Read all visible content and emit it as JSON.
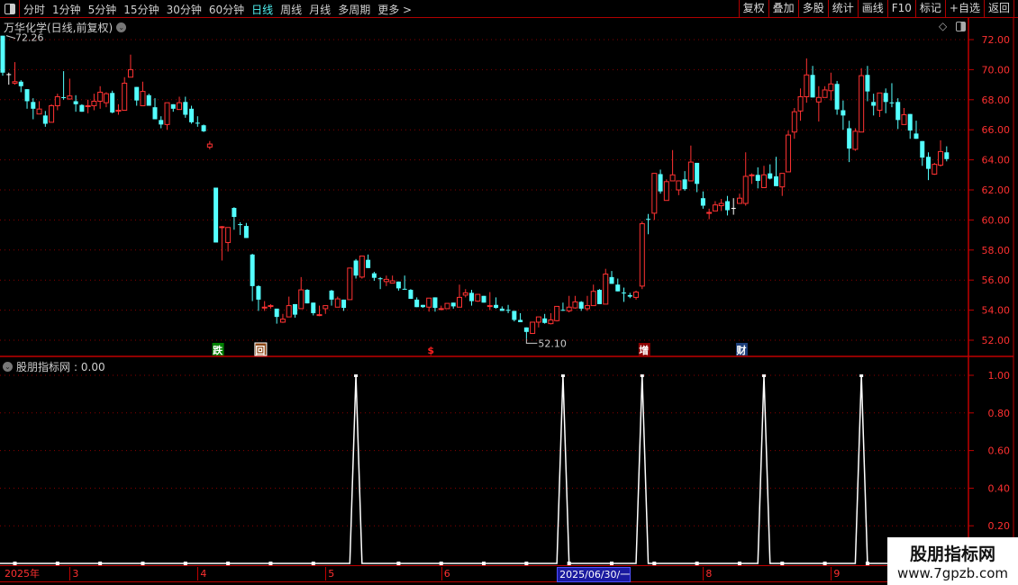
{
  "toolbar": {
    "periods": [
      "分时",
      "1分钟",
      "5分钟",
      "15分钟",
      "30分钟",
      "60分钟",
      "日线",
      "周线",
      "月线",
      "多周期",
      "更多 >"
    ],
    "active_period": "日线",
    "tools": [
      "复权",
      "叠加",
      "多股",
      "统计",
      "画线",
      "F10",
      "标记",
      "+自选",
      "返回"
    ]
  },
  "chart": {
    "title": "万华化学(日线,前复权)",
    "high_label": "72.26",
    "low_label": "52.10",
    "y_ticks": [
      "72.00",
      "70.00",
      "68.00",
      "66.00",
      "64.00",
      "62.00",
      "60.00",
      "58.00",
      "56.00",
      "54.00",
      "52.00"
    ],
    "y_range": [
      52,
      72
    ],
    "colors": {
      "up": "#ff3232",
      "down": "#54ffff",
      "flat": "#ffffff",
      "grid": "#8a0000",
      "axis": "#c00000"
    },
    "events": [
      {
        "label": "跌",
        "index": 35,
        "bg": "#008000",
        "fg": "#ffffff"
      },
      {
        "label": "回",
        "index": 42,
        "bg": "#8b4513",
        "fg": "#ffffff",
        "boxed": true
      },
      {
        "label": "$",
        "index": 70,
        "bg": "none",
        "fg": "#ff2020"
      },
      {
        "label": "增",
        "index": 105,
        "bg": "#8b0000",
        "fg": "#ffffff"
      },
      {
        "label": "财",
        "index": 121,
        "bg": "#1c3d78",
        "fg": "#ffffff"
      }
    ],
    "ohlc": [
      [
        72.26,
        72.26,
        69.6,
        69.8
      ],
      [
        69.7,
        69.8,
        69.0,
        69.7
      ],
      [
        69.1,
        70.5,
        69.0,
        69.2
      ],
      [
        69.2,
        69.3,
        68.5,
        68.9
      ],
      [
        68.7,
        68.7,
        67.4,
        67.9
      ],
      [
        67.85,
        68.1,
        66.7,
        67.4
      ],
      [
        67.05,
        67.9,
        67.05,
        67.38
      ],
      [
        66.95,
        67.25,
        66.2,
        66.4
      ],
      [
        66.5,
        67.7,
        66.5,
        67.6
      ],
      [
        67.6,
        68.4,
        67.3,
        68.2
      ],
      [
        68.17,
        69.9,
        68.0,
        68.15
      ],
      [
        68.05,
        69.4,
        68.0,
        68.25
      ],
      [
        67.9,
        68.3,
        67.2,
        67.7
      ],
      [
        67.65,
        67.7,
        67.2,
        67.2
      ],
      [
        67.58,
        68.0,
        67.1,
        67.6
      ],
      [
        67.6,
        68.4,
        67.3,
        67.9
      ],
      [
        67.9,
        68.9,
        67.4,
        68.5
      ],
      [
        67.8,
        68.5,
        67.5,
        68.4
      ],
      [
        68.45,
        68.6,
        67.1,
        67.15
      ],
      [
        67.28,
        67.7,
        67.0,
        67.3
      ],
      [
        67.3,
        69.5,
        67.3,
        69.1
      ],
      [
        69.5,
        71.0,
        69.5,
        70.0
      ],
      [
        68.85,
        68.85,
        67.6,
        67.95
      ],
      [
        67.6,
        69.2,
        67.6,
        68.55
      ],
      [
        68.3,
        68.4,
        67.6,
        67.6
      ],
      [
        67.5,
        68.1,
        66.7,
        66.7
      ],
      [
        66.65,
        66.9,
        66.1,
        66.35
      ],
      [
        66.35,
        67.8,
        66.0,
        67.8
      ],
      [
        67.7,
        67.7,
        67.2,
        67.4
      ],
      [
        67.35,
        68.2,
        67.35,
        67.8
      ],
      [
        67.85,
        68.2,
        66.8,
        67.0
      ],
      [
        67.4,
        67.6,
        66.4,
        66.5
      ],
      [
        66.47,
        66.9,
        66.2,
        66.45
      ],
      [
        66.3,
        66.35,
        65.85,
        65.9
      ],
      [
        64.85,
        65.25,
        64.7,
        65.05
      ],
      [
        62.15,
        62.15,
        58.5,
        58.5
      ],
      [
        59.5,
        59.6,
        57.3,
        59.55
      ],
      [
        58.5,
        59.5,
        57.9,
        59.5
      ],
      [
        60.8,
        60.85,
        59.35,
        60.2
      ],
      [
        59.72,
        59.85,
        59.0,
        59.7
      ],
      [
        59.6,
        59.8,
        58.8,
        58.8
      ],
      [
        57.7,
        57.75,
        54.6,
        55.6
      ],
      [
        55.6,
        55.65,
        53.95,
        54.7
      ],
      [
        54.15,
        54.6,
        53.95,
        54.2
      ],
      [
        54.25,
        54.4,
        54.1,
        54.3
      ],
      [
        54.1,
        54.1,
        53.1,
        53.55
      ],
      [
        53.2,
        53.75,
        53.15,
        53.4
      ],
      [
        53.55,
        54.9,
        53.55,
        54.3
      ],
      [
        54.4,
        54.4,
        53.5,
        53.7
      ],
      [
        54.1,
        56.2,
        54.1,
        55.35
      ],
      [
        55.35,
        55.4,
        54.45,
        54.45
      ],
      [
        54.5,
        54.5,
        53.65,
        53.8
      ],
      [
        53.65,
        54.3,
        53.6,
        53.7
      ],
      [
        54.1,
        54.3,
        53.75,
        54.3
      ],
      [
        55.3,
        55.35,
        54.3,
        54.7
      ],
      [
        54.2,
        54.9,
        54.2,
        54.75
      ],
      [
        54.7,
        54.7,
        53.95,
        54.15
      ],
      [
        54.7,
        56.8,
        54.7,
        56.8
      ],
      [
        57.3,
        57.4,
        56.1,
        56.3
      ],
      [
        56.2,
        57.6,
        56.1,
        57.6
      ],
      [
        57.35,
        57.7,
        56.8,
        56.8
      ],
      [
        56.45,
        56.55,
        55.95,
        56.15
      ],
      [
        56.12,
        56.2,
        55.4,
        56.1
      ],
      [
        55.9,
        56.3,
        55.6,
        56.05
      ],
      [
        55.8,
        56.3,
        55.8,
        55.95
      ],
      [
        55.9,
        55.9,
        55.3,
        55.45
      ],
      [
        55.42,
        56.3,
        55.4,
        55.4
      ],
      [
        55.35,
        55.4,
        54.75,
        54.75
      ],
      [
        54.7,
        54.85,
        54.2,
        54.2
      ],
      [
        54.35,
        54.35,
        54.15,
        54.2
      ],
      [
        54.2,
        54.8,
        53.9,
        54.8
      ],
      [
        54.85,
        54.85,
        53.9,
        54.15
      ],
      [
        54.08,
        54.3,
        54.0,
        54.1
      ],
      [
        54.1,
        54.45,
        54.1,
        54.45
      ],
      [
        54.5,
        54.5,
        54.1,
        54.25
      ],
      [
        54.2,
        55.7,
        54.2,
        54.85
      ],
      [
        55.0,
        55.4,
        54.85,
        55.15
      ],
      [
        55.15,
        55.35,
        54.3,
        54.6
      ],
      [
        54.6,
        55.05,
        54.55,
        55.05
      ],
      [
        54.95,
        54.95,
        54.5,
        54.5
      ],
      [
        54.28,
        55.2,
        54.0,
        54.3
      ],
      [
        54.35,
        54.85,
        54.1,
        54.15
      ],
      [
        54.1,
        54.25,
        53.95,
        53.95
      ],
      [
        54.02,
        54.35,
        53.8,
        54.0
      ],
      [
        53.95,
        53.95,
        53.25,
        53.35
      ],
      [
        53.35,
        53.8,
        53.2,
        53.2
      ],
      [
        52.85,
        52.85,
        52.1,
        52.55
      ],
      [
        52.45,
        53.2,
        52.45,
        53.2
      ],
      [
        53.2,
        53.55,
        52.85,
        53.55
      ],
      [
        53.45,
        53.75,
        53.1,
        53.15
      ],
      [
        53.1,
        53.8,
        53.05,
        53.35
      ],
      [
        53.3,
        54.25,
        53.25,
        54.25
      ],
      [
        54.02,
        54.5,
        53.95,
        54.0
      ],
      [
        53.95,
        54.95,
        53.85,
        54.2
      ],
      [
        54.15,
        54.95,
        54.1,
        54.55
      ],
      [
        54.55,
        54.6,
        53.95,
        54.1
      ],
      [
        54.1,
        54.95,
        53.95,
        54.3
      ],
      [
        54.3,
        55.7,
        54.3,
        55.25
      ],
      [
        55.35,
        55.4,
        54.4,
        54.4
      ],
      [
        54.4,
        56.75,
        54.4,
        56.4
      ],
      [
        56.2,
        56.6,
        55.75,
        55.75
      ],
      [
        55.7,
        56.1,
        55.25,
        55.25
      ],
      [
        55.17,
        55.5,
        54.55,
        55.15
      ],
      [
        55.0,
        55.15,
        54.8,
        54.9
      ],
      [
        54.85,
        55.3,
        54.7,
        55.2
      ],
      [
        55.6,
        59.9,
        55.4,
        59.75
      ],
      [
        60.07,
        60.4,
        59.05,
        60.05
      ],
      [
        60.45,
        63.1,
        60.0,
        63.1
      ],
      [
        63.05,
        63.35,
        61.75,
        61.9
      ],
      [
        61.3,
        62.7,
        61.3,
        62.55
      ],
      [
        62.6,
        64.65,
        62.6,
        63.0
      ],
      [
        62.0,
        62.6,
        61.65,
        62.6
      ],
      [
        62.7,
        63.25,
        61.95,
        62.05
      ],
      [
        62.6,
        64.95,
        62.6,
        63.85
      ],
      [
        63.8,
        63.8,
        61.85,
        62.4
      ],
      [
        61.45,
        61.9,
        60.75,
        60.95
      ],
      [
        60.48,
        60.75,
        60.05,
        60.5
      ],
      [
        60.6,
        61.25,
        60.6,
        61.0
      ],
      [
        60.95,
        61.4,
        60.6,
        61.1
      ],
      [
        61.25,
        61.6,
        60.3,
        60.65
      ],
      [
        60.8,
        61.45,
        60.35,
        60.8
      ],
      [
        61.1,
        61.75,
        61.1,
        61.45
      ],
      [
        61.1,
        64.5,
        60.95,
        62.9
      ],
      [
        62.95,
        63.1,
        62.4,
        63.0
      ],
      [
        63.0,
        63.5,
        62.1,
        62.6
      ],
      [
        62.15,
        63.6,
        62.15,
        63.0
      ],
      [
        63.1,
        63.7,
        62.7,
        62.75
      ],
      [
        62.9,
        64.2,
        62.25,
        62.25
      ],
      [
        62.2,
        63.1,
        61.6,
        63.1
      ],
      [
        63.2,
        65.95,
        63.2,
        65.65
      ],
      [
        65.85,
        67.45,
        65.4,
        67.2
      ],
      [
        67.25,
        68.75,
        66.6,
        68.2
      ],
      [
        68.2,
        70.75,
        67.8,
        69.65
      ],
      [
        69.65,
        70.25,
        68.15,
        68.15
      ],
      [
        67.85,
        68.9,
        66.55,
        68.15
      ],
      [
        68.15,
        68.9,
        68.15,
        68.65
      ],
      [
        68.6,
        69.8,
        67.95,
        69.05
      ],
      [
        69.05,
        69.25,
        67.0,
        67.35
      ],
      [
        67.3,
        67.95,
        66.0,
        66.95
      ],
      [
        66.1,
        66.6,
        63.85,
        64.75
      ],
      [
        64.7,
        66.1,
        64.6,
        65.9
      ],
      [
        65.85,
        70.1,
        65.85,
        69.6
      ],
      [
        69.65,
        70.25,
        67.9,
        68.55
      ],
      [
        67.85,
        68.4,
        66.95,
        67.6
      ],
      [
        67.3,
        68.45,
        66.85,
        68.45
      ],
      [
        68.45,
        68.75,
        67.1,
        67.85
      ],
      [
        67.82,
        69.1,
        67.5,
        67.8
      ],
      [
        67.85,
        68.1,
        66.05,
        66.65
      ],
      [
        66.35,
        67.45,
        66.35,
        67.0
      ],
      [
        67.05,
        67.05,
        65.4,
        65.95
      ],
      [
        65.75,
        66.6,
        65.4,
        65.4
      ],
      [
        65.25,
        65.25,
        63.6,
        64.15
      ],
      [
        64.2,
        64.5,
        62.65,
        63.4
      ],
      [
        63.05,
        63.8,
        63.0,
        63.7
      ],
      [
        63.65,
        65.3,
        63.55,
        64.55
      ],
      [
        64.5,
        64.9,
        63.9,
        64.05
      ]
    ]
  },
  "indicator": {
    "name": "股朋指标网",
    "value_label": ": 0.00",
    "y_ticks": [
      "1.00",
      "0.80",
      "0.60",
      "0.40",
      "0.20"
    ],
    "y_range": [
      0,
      1
    ],
    "signal_indices": [
      58,
      92,
      105,
      125,
      141
    ],
    "signal_value": 1
  },
  "date_axis": {
    "labels": [
      {
        "text": "2025年",
        "index": 0
      },
      {
        "text": "3",
        "index": 11
      },
      {
        "text": "4",
        "index": 32
      },
      {
        "text": "5",
        "index": 53
      },
      {
        "text": "6",
        "index": 72
      },
      {
        "text": "2025/06/30/一",
        "index": 91,
        "highlight": true
      },
      {
        "text": "8",
        "index": 115
      },
      {
        "text": "9",
        "index": 136
      }
    ]
  },
  "watermark": {
    "line1": "股朋指标网",
    "line2": "www.7gpzb.com"
  }
}
